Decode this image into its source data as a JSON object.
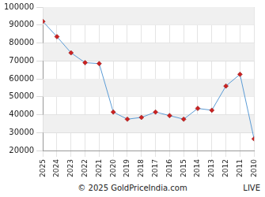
{
  "chart_data": {
    "type": "line",
    "categories": [
      "2025",
      "2024",
      "2023",
      "2022",
      "2021",
      "2020",
      "2019",
      "2018",
      "2017",
      "2016",
      "2015",
      "2014",
      "2013",
      "2012",
      "2011",
      "2010"
    ],
    "series": [
      {
        "color": "#5b9bd5",
        "marker": "diamond",
        "values": [
          92000,
          83500,
          74500,
          69000,
          68500,
          41500,
          37500,
          38500,
          41500,
          39500,
          37500,
          43500,
          42500,
          56000,
          62500,
          26500
        ]
      }
    ],
    "ylim": [
      20000,
      100000
    ],
    "yticks": [
      20000,
      30000,
      40000,
      50000,
      60000,
      70000,
      80000,
      90000,
      100000
    ],
    "grid": true,
    "annotations": [
      "© 2025 GoldPriceIndia.com",
      "LIVE"
    ]
  }
}
